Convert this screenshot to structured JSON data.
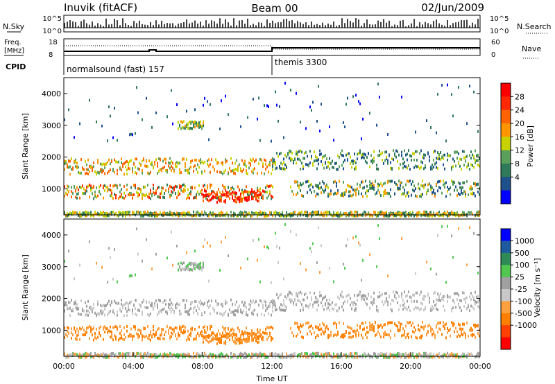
{
  "header": {
    "station": "Inuvik (fitACF)",
    "beam": "Beam 00",
    "date": "02/Jun/2009"
  },
  "top_panels": {
    "nsky_label": "N.Sky",
    "nsky_tick_top": "10^5",
    "nsky_tick_bottom": "10^0",
    "nsearch_label": "N.Search",
    "freq_label_1": "Freq.",
    "freq_label_2": "[MHz]",
    "freq_ticks": [
      "18",
      "8"
    ],
    "nave_label": "Nave",
    "nave_ticks": [
      "60",
      "0"
    ],
    "cpid_label": "CPID",
    "cpid_entries": [
      {
        "name": "normalsound (fast) 157",
        "start_hour": 0
      },
      {
        "name": "themis 3300",
        "start_hour": 12
      }
    ]
  },
  "colors": {
    "power_scale": [
      "#0000ff",
      "#1e508c",
      "#2e7a5a",
      "#5aa05a",
      "#c8d200",
      "#ff9600",
      "#ff6400",
      "#ff2800",
      "#ff0000"
    ],
    "velocity_scale": [
      "#ff0000",
      "#ff4000",
      "#ff8000",
      "#ffa040",
      "#c8c8c8",
      "#a0a0a0",
      "#50c850",
      "#2e8b57",
      "#1e5aa0",
      "#0000ff"
    ]
  },
  "chart_data": [
    {
      "type": "heatmap",
      "name": "power",
      "ylabel": "Slant Range [km]",
      "xlabel": "",
      "x_range_hours": [
        0,
        24
      ],
      "y_range_km": [
        180,
        4500
      ],
      "y_ticks": [
        1000,
        2000,
        3000,
        4000
      ],
      "colorbar_label": "Power [dB]",
      "colorbar_ticks": [
        "28",
        "24",
        "20",
        "16",
        "12",
        "8",
        "4"
      ],
      "color_range": [
        0,
        32
      ]
    },
    {
      "type": "heatmap",
      "name": "velocity",
      "ylabel": "Slant Range [km]",
      "xlabel": "Time UT",
      "x_ticks": [
        "00:00",
        "04:00",
        "08:00",
        "12:00",
        "16:00",
        "20:00",
        "00:00"
      ],
      "y_range_km": [
        180,
        4500
      ],
      "y_ticks": [
        1000,
        2000,
        3000,
        4000
      ],
      "colorbar_label": "Velocity [m s⁻¹]",
      "colorbar_ticks": [
        "1000",
        "500",
        "100",
        "25",
        "-25",
        "-100",
        "-500",
        "-1000"
      ]
    }
  ]
}
